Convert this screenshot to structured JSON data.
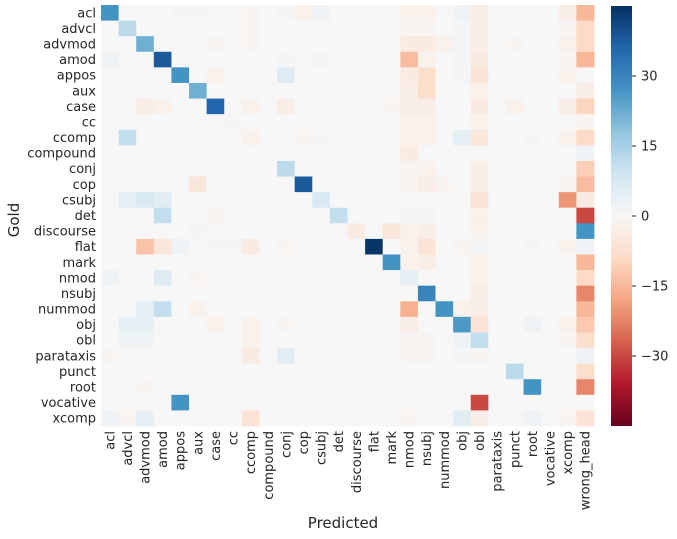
{
  "chart_data": {
    "type": "heatmap",
    "title": "",
    "xlabel": "Predicted",
    "ylabel": "Gold",
    "x_categories": [
      "acl",
      "advcl",
      "advmod",
      "amod",
      "appos",
      "aux",
      "case",
      "cc",
      "ccomp",
      "compound",
      "conj",
      "cop",
      "csubj",
      "det",
      "discourse",
      "flat",
      "mark",
      "nmod",
      "nsubj",
      "nummod",
      "obj",
      "obl",
      "parataxis",
      "punct",
      "root",
      "vocative",
      "xcomp",
      "wrong_head"
    ],
    "y_categories": [
      "acl",
      "advcl",
      "advmod",
      "amod",
      "appos",
      "aux",
      "case",
      "cc",
      "ccomp",
      "compound",
      "conj",
      "cop",
      "csubj",
      "det",
      "discourse",
      "flat",
      "mark",
      "nmod",
      "nsubj",
      "nummod",
      "obj",
      "obl",
      "parataxis",
      "punct",
      "root",
      "vocative",
      "xcomp"
    ],
    "values": [
      [
        27,
        0,
        0,
        0,
        1,
        1,
        0,
        0,
        -1,
        0,
        1,
        -2,
        2,
        0,
        0,
        0,
        0,
        -2,
        -2,
        0,
        2,
        -3,
        0,
        0,
        0,
        0,
        -3,
        -15
      ],
      [
        0,
        12,
        0,
        0,
        0,
        0,
        0,
        0,
        -1,
        0,
        0,
        0,
        0,
        0,
        0,
        0,
        0,
        -1,
        -1,
        0,
        1,
        -3,
        0,
        0,
        0,
        0,
        -1,
        -9
      ],
      [
        0,
        0,
        22,
        0,
        0,
        0,
        -1,
        0,
        -1,
        0,
        0,
        0,
        0,
        0,
        0,
        0,
        0,
        -4,
        -4,
        -2,
        1,
        -3,
        0,
        -1,
        0,
        0,
        -2,
        -9
      ],
      [
        2,
        0,
        0,
        38,
        0,
        0,
        0,
        0,
        0,
        0,
        1,
        0,
        1,
        0,
        0,
        0,
        0,
        -14,
        -2,
        0,
        1,
        -4,
        0,
        0,
        0,
        0,
        -1,
        -15
      ],
      [
        0,
        0,
        0,
        0,
        27,
        0,
        -2,
        0,
        0,
        0,
        6,
        0,
        0,
        0,
        0,
        0,
        0,
        -4,
        -8,
        0,
        1,
        -6,
        0,
        0,
        0,
        0,
        -2,
        0
      ],
      [
        0,
        0,
        0,
        0,
        0,
        22,
        0,
        0,
        0,
        0,
        0,
        0,
        0,
        0,
        0,
        0,
        0,
        -3,
        -8,
        0,
        0,
        -2,
        0,
        0,
        0,
        0,
        0,
        -3
      ],
      [
        0,
        0,
        -3,
        -2,
        0,
        0,
        36,
        0,
        -2,
        0,
        -3,
        0,
        0,
        0,
        0,
        0,
        -1,
        -3,
        -3,
        0,
        0,
        -4,
        0,
        -2,
        0,
        0,
        -3,
        -10
      ],
      [
        0,
        0,
        0,
        0,
        0,
        0,
        0,
        1,
        0,
        0,
        0,
        0,
        0,
        0,
        0,
        0,
        0,
        -2,
        -2,
        0,
        0,
        -2,
        0,
        0,
        0,
        0,
        0,
        -1
      ],
      [
        0,
        11,
        0,
        0,
        0,
        0,
        0,
        0,
        -2,
        0,
        0,
        -1,
        1,
        0,
        0,
        0,
        0,
        -2,
        -2,
        0,
        4,
        -5,
        0,
        0,
        1,
        0,
        -2,
        -9
      ],
      [
        0,
        0,
        0,
        0,
        0,
        0,
        0,
        0,
        0,
        0,
        0,
        0,
        0,
        0,
        0,
        0,
        0,
        -4,
        0,
        0,
        0,
        0,
        0,
        0,
        0,
        0,
        0,
        2
      ],
      [
        0,
        0,
        0,
        0,
        0,
        0,
        0,
        0,
        0,
        0,
        12,
        0,
        0,
        0,
        0,
        0,
        0,
        -1,
        -2,
        0,
        0,
        -3,
        0,
        0,
        0,
        0,
        0,
        -11
      ],
      [
        0,
        0,
        0,
        0,
        0,
        -5,
        0,
        0,
        0,
        0,
        0,
        38,
        0,
        0,
        0,
        0,
        0,
        -1,
        -3,
        -1,
        0,
        -3,
        0,
        0,
        0,
        0,
        -1,
        -14
      ],
      [
        0,
        4,
        7,
        5,
        0,
        0,
        0,
        0,
        0,
        0,
        0,
        0,
        7,
        0,
        0,
        0,
        0,
        0,
        0,
        0,
        0,
        -6,
        0,
        0,
        0,
        0,
        -20,
        -4
      ],
      [
        0,
        0,
        0,
        11,
        0,
        0,
        -1,
        0,
        0,
        0,
        0,
        0,
        0,
        11,
        0,
        0,
        0,
        1,
        1,
        0,
        0,
        -2,
        0,
        0,
        0,
        0,
        0,
        -30
      ],
      [
        0,
        0,
        0,
        0,
        0,
        1,
        0,
        0,
        0,
        0,
        0,
        0,
        0,
        0,
        -4,
        0,
        -5,
        -2,
        -3,
        0,
        0,
        -2,
        0,
        0,
        0,
        0,
        0,
        27
      ],
      [
        0,
        0,
        -13,
        -5,
        2,
        0,
        1,
        1,
        -4,
        0,
        -1,
        0,
        0,
        0,
        0,
        44,
        0,
        -2,
        -6,
        0,
        -1,
        1,
        0,
        0,
        1,
        0,
        -2,
        2
      ],
      [
        0,
        0,
        0,
        0,
        0,
        0,
        0,
        0,
        0,
        0,
        0,
        0,
        0,
        0,
        0,
        0,
        27,
        -2,
        -3,
        0,
        0,
        -2,
        0,
        0,
        0,
        0,
        0,
        -15
      ],
      [
        2,
        0,
        0,
        6,
        0,
        -1,
        0,
        0,
        0,
        0,
        0,
        0,
        0,
        0,
        0,
        0,
        0,
        4,
        0,
        0,
        0,
        -2,
        0,
        0,
        0,
        0,
        0,
        -9
      ],
      [
        0,
        0,
        0,
        0,
        0,
        0,
        0,
        0,
        0,
        0,
        0,
        0,
        0,
        0,
        0,
        0,
        0,
        0,
        30,
        0,
        0,
        -3,
        0,
        0,
        0,
        0,
        0,
        -22
      ],
      [
        0,
        0,
        4,
        11,
        0,
        -2,
        0,
        0,
        0,
        0,
        0,
        0,
        0,
        0,
        0,
        0,
        0,
        -16,
        0,
        27,
        -2,
        -3,
        0,
        0,
        0,
        0,
        0,
        -15
      ],
      [
        0,
        4,
        4,
        0,
        0,
        0,
        -2,
        0,
        -2,
        0,
        -1,
        0,
        0,
        0,
        0,
        0,
        0,
        -3,
        0,
        0,
        26,
        -6,
        0,
        0,
        2,
        0,
        -2,
        -12
      ],
      [
        0,
        2,
        2,
        0,
        0,
        0,
        0,
        0,
        -2,
        0,
        0,
        0,
        0,
        0,
        0,
        0,
        0,
        -1,
        -1,
        0,
        2,
        11,
        0,
        0,
        0,
        0,
        -1,
        -8
      ],
      [
        -1,
        0,
        0,
        0,
        0,
        0,
        0,
        0,
        -4,
        0,
        5,
        0,
        0,
        0,
        0,
        0,
        0,
        -1,
        -1,
        0,
        1,
        -1,
        0,
        0,
        0,
        0,
        0,
        2
      ],
      [
        0,
        0,
        0,
        0,
        0,
        0,
        0,
        0,
        0,
        0,
        0,
        0,
        0,
        0,
        0,
        0,
        0,
        0,
        0,
        0,
        0,
        0,
        0,
        12,
        0,
        0,
        0,
        -8
      ],
      [
        0,
        0,
        -1,
        0,
        0,
        0,
        0,
        0,
        0,
        0,
        0,
        0,
        0,
        0,
        0,
        0,
        0,
        0,
        0,
        0,
        0,
        0,
        0,
        0,
        27,
        0,
        0,
        -22
      ],
      [
        0,
        0,
        0,
        0,
        27,
        0,
        0,
        0,
        0,
        0,
        0,
        0,
        0,
        0,
        0,
        0,
        0,
        0,
        0,
        0,
        0,
        -30,
        0,
        0,
        0,
        0,
        0,
        0
      ],
      [
        2,
        -1,
        4,
        0,
        0,
        0,
        0,
        0,
        -6,
        0,
        0,
        0,
        0,
        0,
        0,
        0,
        0,
        -1,
        0,
        0,
        5,
        -3,
        0,
        0,
        2,
        0,
        -1,
        -6
      ]
    ],
    "colorbar": {
      "colormap": "RdBu",
      "vmin": -45,
      "vmax": 45,
      "ticks": [
        30,
        15,
        0,
        -15,
        -30
      ]
    },
    "grid": false,
    "legend": "right"
  }
}
